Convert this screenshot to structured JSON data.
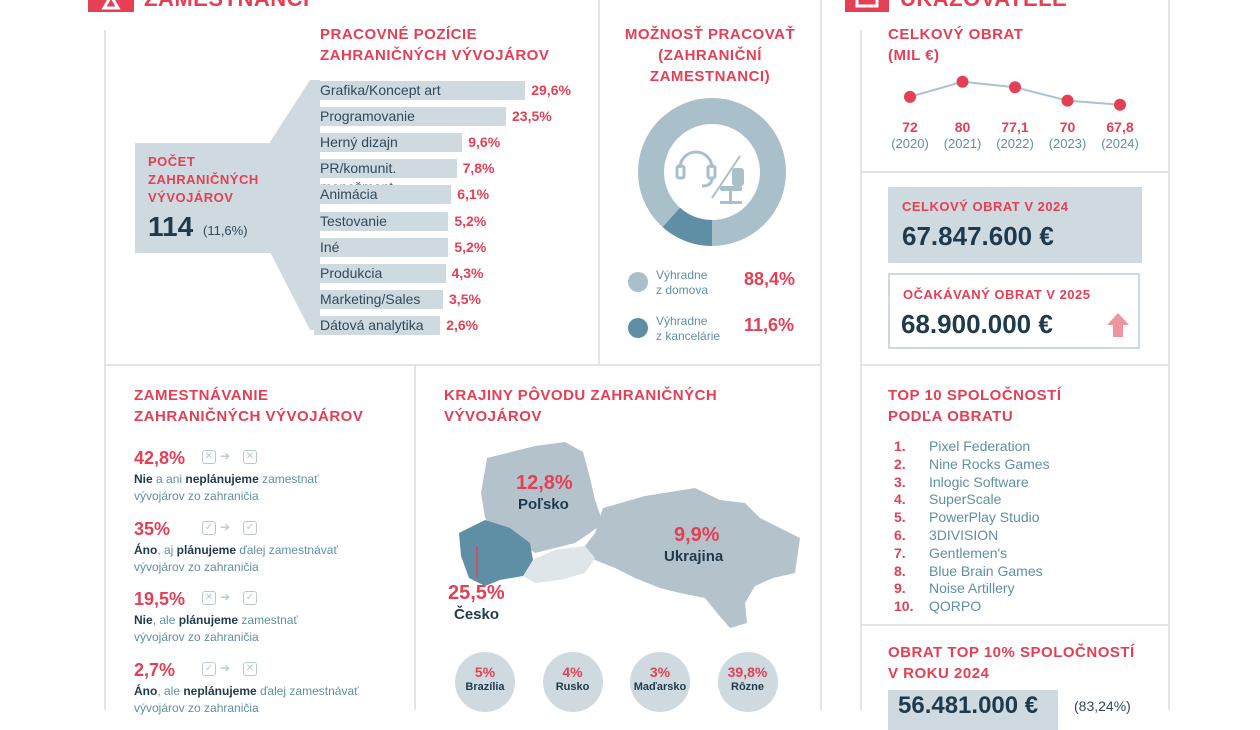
{
  "header": {
    "left_title_fragment": "ZAMESTNANCI",
    "right_title_fragment": "UKAZOVATELE"
  },
  "positions": {
    "title_line1": "PRACOVNÉ POZÍCIE",
    "title_line2": "ZAHRANIČNÝCH VÝVOJÁROV",
    "count_label_line1": "POČET",
    "count_label_line2": "ZAHRANIČNÝCH",
    "count_label_line3": "VÝVOJÁROV",
    "count_value": "114",
    "count_pct": "(11,6%)",
    "rows": [
      {
        "label": "Grafika/Koncept art",
        "value": "29,6%",
        "pct": 29.6
      },
      {
        "label": "Programovanie",
        "value": "23,5%",
        "pct": 23.5
      },
      {
        "label": "Herný dizajn",
        "value": "9,6%",
        "pct": 9.6
      },
      {
        "label": "PR/komunit. menežment",
        "value": "7,8%",
        "pct": 7.8
      },
      {
        "label": "Animácia",
        "value": "6,1%",
        "pct": 6.1
      },
      {
        "label": "Testovanie",
        "value": "5,2%",
        "pct": 5.2
      },
      {
        "label": "Iné",
        "value": "5,2%",
        "pct": 5.2
      },
      {
        "label": "Produkcia",
        "value": "4,3%",
        "pct": 4.3
      },
      {
        "label": "Marketing/Sales",
        "value": "3,5%",
        "pct": 3.5
      },
      {
        "label": "Dátová analytika",
        "value": "2,6%",
        "pct": 2.6
      }
    ]
  },
  "work_mode": {
    "title_line1": "MOŽNOSŤ PRACOVAŤ",
    "title_line2": "(ZAHRANIČNÍ",
    "title_line3": "ZAMESTNANCI)",
    "home_share": 88.4,
    "legend": [
      {
        "line1": "Výhradne",
        "line2": "z domova",
        "value": "88,4%",
        "color": "#a9bfca"
      },
      {
        "line1": "Výhradne",
        "line2": "z kancelárie",
        "value": "11,6%",
        "color": "#5f8fa4"
      }
    ]
  },
  "revenue": {
    "title_line1": "CELKOVÝ OBRAT",
    "title_line2": "(MIL €)",
    "points": [
      {
        "value": "72",
        "year": "(2020)",
        "num": 72
      },
      {
        "value": "80",
        "year": "(2021)",
        "num": 80
      },
      {
        "value": "77,1",
        "year": "(2022)",
        "num": 77.1
      },
      {
        "value": "70",
        "year": "(2023)",
        "num": 70
      },
      {
        "value": "67,8",
        "year": "(2024)",
        "num": 67.8
      }
    ]
  },
  "total_2024": {
    "label": "CELKOVÝ OBRAT V 2024",
    "value": "67.847.600 €"
  },
  "expected_2025": {
    "label": "OČAKÁVANÝ OBRAT V 2025",
    "value": "68.900.000 €"
  },
  "employment": {
    "title_line1": "ZAMESTNÁVANIE",
    "title_line2": "ZAHRANIČNÝCH VÝVOJÁROV",
    "items": [
      {
        "pct": "42,8%",
        "a": "Nie",
        "b": " a ani ",
        "c": "neplánujeme",
        "d": " zamestnať",
        "e": "vývojárov zo zahraničia",
        "from": "✕",
        "to": "✕"
      },
      {
        "pct": "35%",
        "a": "Áno",
        "b": ", aj ",
        "c": "plánujeme",
        "d": " ďalej zamestnávať",
        "e": "vývojárov zo zahraničia",
        "from": "✓",
        "to": "✓"
      },
      {
        "pct": "19,5%",
        "a": "Nie",
        "b": ", ale ",
        "c": "plánujeme",
        "d": " zamestnať",
        "e": "vývojárov zo zahraničia",
        "from": "✕",
        "to": "✓"
      },
      {
        "pct": "2,7%",
        "a": "Áno",
        "b": ", ale ",
        "c": "neplánujeme",
        "d": " ďalej zamestnávať",
        "e": "vývojárov zo zahraničia",
        "from": "✓",
        "to": "✕"
      }
    ]
  },
  "origin": {
    "title_line1": "KRAJINY PÔVODU ZAHRANIČNÝCH",
    "title_line2": "VÝVOJÁROV",
    "poland": {
      "value": "12,8%",
      "name": "Poľsko"
    },
    "ukraine": {
      "value": "9,9%",
      "name": "Ukrajina"
    },
    "czech": {
      "value": "25,5%",
      "name": "Česko"
    },
    "others": [
      {
        "value": "5%",
        "name": "Brazília"
      },
      {
        "value": "4%",
        "name": "Rusko"
      },
      {
        "value": "3%",
        "name": "Maďarsko"
      },
      {
        "value": "39,8%",
        "name": "Rôzne"
      }
    ]
  },
  "top10": {
    "title_line1": "TOP 10 SPOLOČNOSTÍ",
    "title_line2": "PODĽA OBRATU",
    "items": [
      {
        "n": "1.",
        "name": "Pixel Federation"
      },
      {
        "n": "2.",
        "name": "Nine Rocks Games"
      },
      {
        "n": "3.",
        "name": "Inlogic Software"
      },
      {
        "n": "4.",
        "name": "SuperScale"
      },
      {
        "n": "5.",
        "name": "PowerPlay Studio"
      },
      {
        "n": "6.",
        "name": "3DIVISION"
      },
      {
        "n": "7.",
        "name": "Gentlemen's"
      },
      {
        "n": "8.",
        "name": "Blue Brain Games"
      },
      {
        "n": "9.",
        "name": "Noise Artillery"
      },
      {
        "n": "10.",
        "name": "QORPO"
      }
    ]
  },
  "top10pct": {
    "title_line1": "OBRAT TOP 10% SPOLOČNOSTÍ",
    "title_line2": "V ROKU 2024",
    "value": "56.481.000 €",
    "share": "(83,24%)"
  },
  "colors": {
    "accent": "#e43f55",
    "navy": "#1f3a4d",
    "light": "#cfdae0",
    "teal": "#5f8fa4"
  }
}
